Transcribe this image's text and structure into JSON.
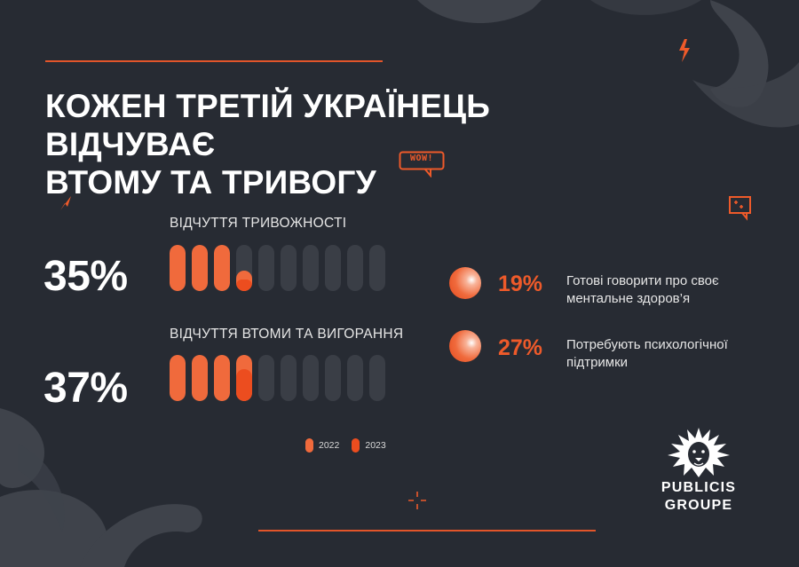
{
  "title_line1": "КОЖЕН ТРЕТІЙ УКРАЇНЕЦЬ ВІДЧУВАЄ",
  "title_line2": "ВТОМУ ТА ТРИВОГУ",
  "bubble_text": "WOW!",
  "metrics": [
    {
      "label": "ВІДЧУТТЯ ТРИВОЖНОСТІ",
      "value": "35%",
      "fill_2022": [
        1,
        1,
        1,
        0.45,
        0,
        0,
        0,
        0,
        0,
        0
      ],
      "fill_2023": [
        0,
        0,
        0,
        0.25,
        0,
        0,
        0,
        0,
        0,
        0
      ]
    },
    {
      "label": "ВІДЧУТТЯ ВТОМИ ТА ВИГОРАННЯ",
      "value": "37%",
      "fill_2022": [
        1,
        1,
        1,
        1,
        0,
        0,
        0,
        0,
        0,
        0
      ],
      "fill_2023": [
        0,
        0,
        0,
        0.7,
        0,
        0,
        0,
        0,
        0,
        0
      ]
    }
  ],
  "legend": [
    {
      "label": "2022",
      "color": "#f06a3c"
    },
    {
      "label": "2023",
      "color": "#ec4d1f"
    }
  ],
  "stats": [
    {
      "value": "19%",
      "line1": "Готові говорити про своє",
      "line2": "ментальне здоров’я"
    },
    {
      "value": "27%",
      "line1": "Потребують психологічної",
      "line2": "підтримки"
    }
  ],
  "logo": {
    "line1": "PUBLICIS",
    "line2": "GROUPE"
  },
  "colors": {
    "background": "#272b33",
    "accent": "#ee5a2a",
    "bar_empty": "#3a3e46"
  }
}
